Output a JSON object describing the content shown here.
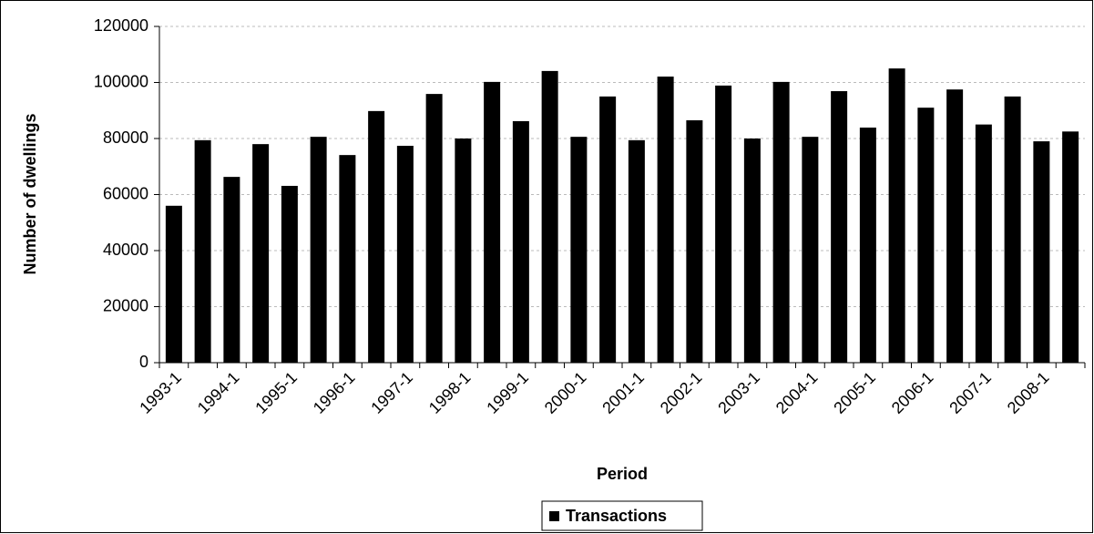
{
  "chart_data": {
    "type": "bar",
    "x_label": "Period",
    "y_label": "Number of dwellings",
    "categories": [
      "1993-1",
      null,
      "1994-1",
      null,
      "1995-1",
      null,
      "1996-1",
      null,
      "1997-1",
      null,
      "1998-1",
      null,
      "1999-1",
      null,
      "2000-1",
      null,
      "2001-1",
      null,
      "2002-1",
      null,
      "2003-1",
      null,
      "2004-1",
      null,
      "2005-1",
      null,
      "2006-1",
      null,
      "2007-1",
      null,
      "2008-1",
      null
    ],
    "series": [
      {
        "name": "Transactions",
        "color": "#000000",
        "values": [
          56000,
          79400,
          66300,
          78000,
          63100,
          80600,
          74100,
          89800,
          77400,
          95900,
          80000,
          100200,
          86200,
          104100,
          80600,
          95000,
          79400,
          102100,
          86500,
          98900,
          80000,
          100200,
          80600,
          96900,
          83900,
          105000,
          91000,
          97500,
          85000,
          95000,
          79000,
          82500
        ]
      }
    ],
    "ylim": [
      0,
      120000
    ],
    "yticks": [
      0,
      20000,
      40000,
      60000,
      80000,
      100000,
      120000
    ],
    "grid": true,
    "legend": "bottom"
  }
}
